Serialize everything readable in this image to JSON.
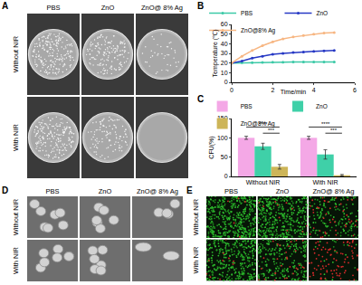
{
  "panel_letters": [
    "A",
    "B",
    "C",
    "D",
    "E"
  ],
  "panel_a": {
    "columns": [
      "PBS",
      "ZnO",
      "ZnO@ 8% Ag"
    ],
    "rows": [
      "Without NIR",
      "With NIR"
    ]
  },
  "panel_d": {
    "columns": [
      "PBS",
      "ZnO",
      "ZnO@ 8% Ag"
    ],
    "rows": [
      "Without NIR",
      "With NIR"
    ]
  },
  "panel_e": {
    "columns": [
      "PBS",
      "ZnO",
      "ZnO@ 8% Ag"
    ],
    "rows": [
      "Without NIR",
      "With NIR"
    ]
  },
  "chart_data": [
    {
      "type": "line",
      "x_label": "Time/min",
      "y_label": "Temperature (℃)",
      "xlim": [
        0,
        6
      ],
      "xticks": [
        0,
        2,
        4,
        6
      ],
      "ylim": [
        0,
        60
      ],
      "yticks": [
        0,
        10,
        20,
        30,
        40,
        50,
        60
      ],
      "grid": false,
      "legend": "top",
      "marker": "circle",
      "x": [
        0,
        0.5,
        1,
        1.5,
        2,
        2.5,
        3,
        3.5,
        4,
        4.5,
        5
      ],
      "series": [
        {
          "name": "PBS",
          "color": "#3cc9a7",
          "values": [
            20,
            20.3,
            20.5,
            20.6,
            20.8,
            20.9,
            21,
            21,
            21.1,
            21.2,
            21.2
          ]
        },
        {
          "name": "ZnO",
          "color": "#2638c4",
          "values": [
            20,
            22,
            25,
            27,
            29,
            30,
            31,
            31.5,
            32,
            32.5,
            33
          ]
        },
        {
          "name": "ZnO@8% Ag",
          "color": "#f7b682",
          "values": [
            20,
            27,
            33,
            38,
            42,
            45,
            47,
            48.5,
            50,
            51,
            51.5
          ]
        }
      ]
    },
    {
      "type": "bar",
      "y_label": "CFU(%)",
      "categories": [
        "Without NIR",
        "With NIR"
      ],
      "ylim": [
        0,
        150
      ],
      "yticks": [
        0,
        50,
        100,
        150
      ],
      "grid": false,
      "legend": "top",
      "series": [
        {
          "name": "PBS",
          "color": "#f4a8e6",
          "values": [
            100,
            100
          ],
          "errors": [
            4,
            4
          ]
        },
        {
          "name": "ZnO",
          "color": "#3fd0a8",
          "values": [
            78,
            57
          ],
          "errors": [
            8,
            12
          ]
        },
        {
          "name": "ZnO@8% Ag",
          "color": "#cdb558",
          "values": [
            25,
            3
          ],
          "errors": [
            6,
            2
          ]
        }
      ],
      "annotations": [
        {
          "text": "****",
          "category": 0,
          "y": 128,
          "between": [
            "PBS",
            "ZnO@8% Ag"
          ]
        },
        {
          "text": "***",
          "category": 0,
          "y": 112,
          "between": [
            "ZnO",
            "ZnO@8% Ag"
          ]
        },
        {
          "text": "****",
          "category": 1,
          "y": 128,
          "between": [
            "PBS",
            "ZnO@8% Ag"
          ]
        },
        {
          "text": "***",
          "category": 1,
          "y": 112,
          "between": [
            "ZnO",
            "ZnO@8% Ag"
          ]
        }
      ]
    }
  ]
}
